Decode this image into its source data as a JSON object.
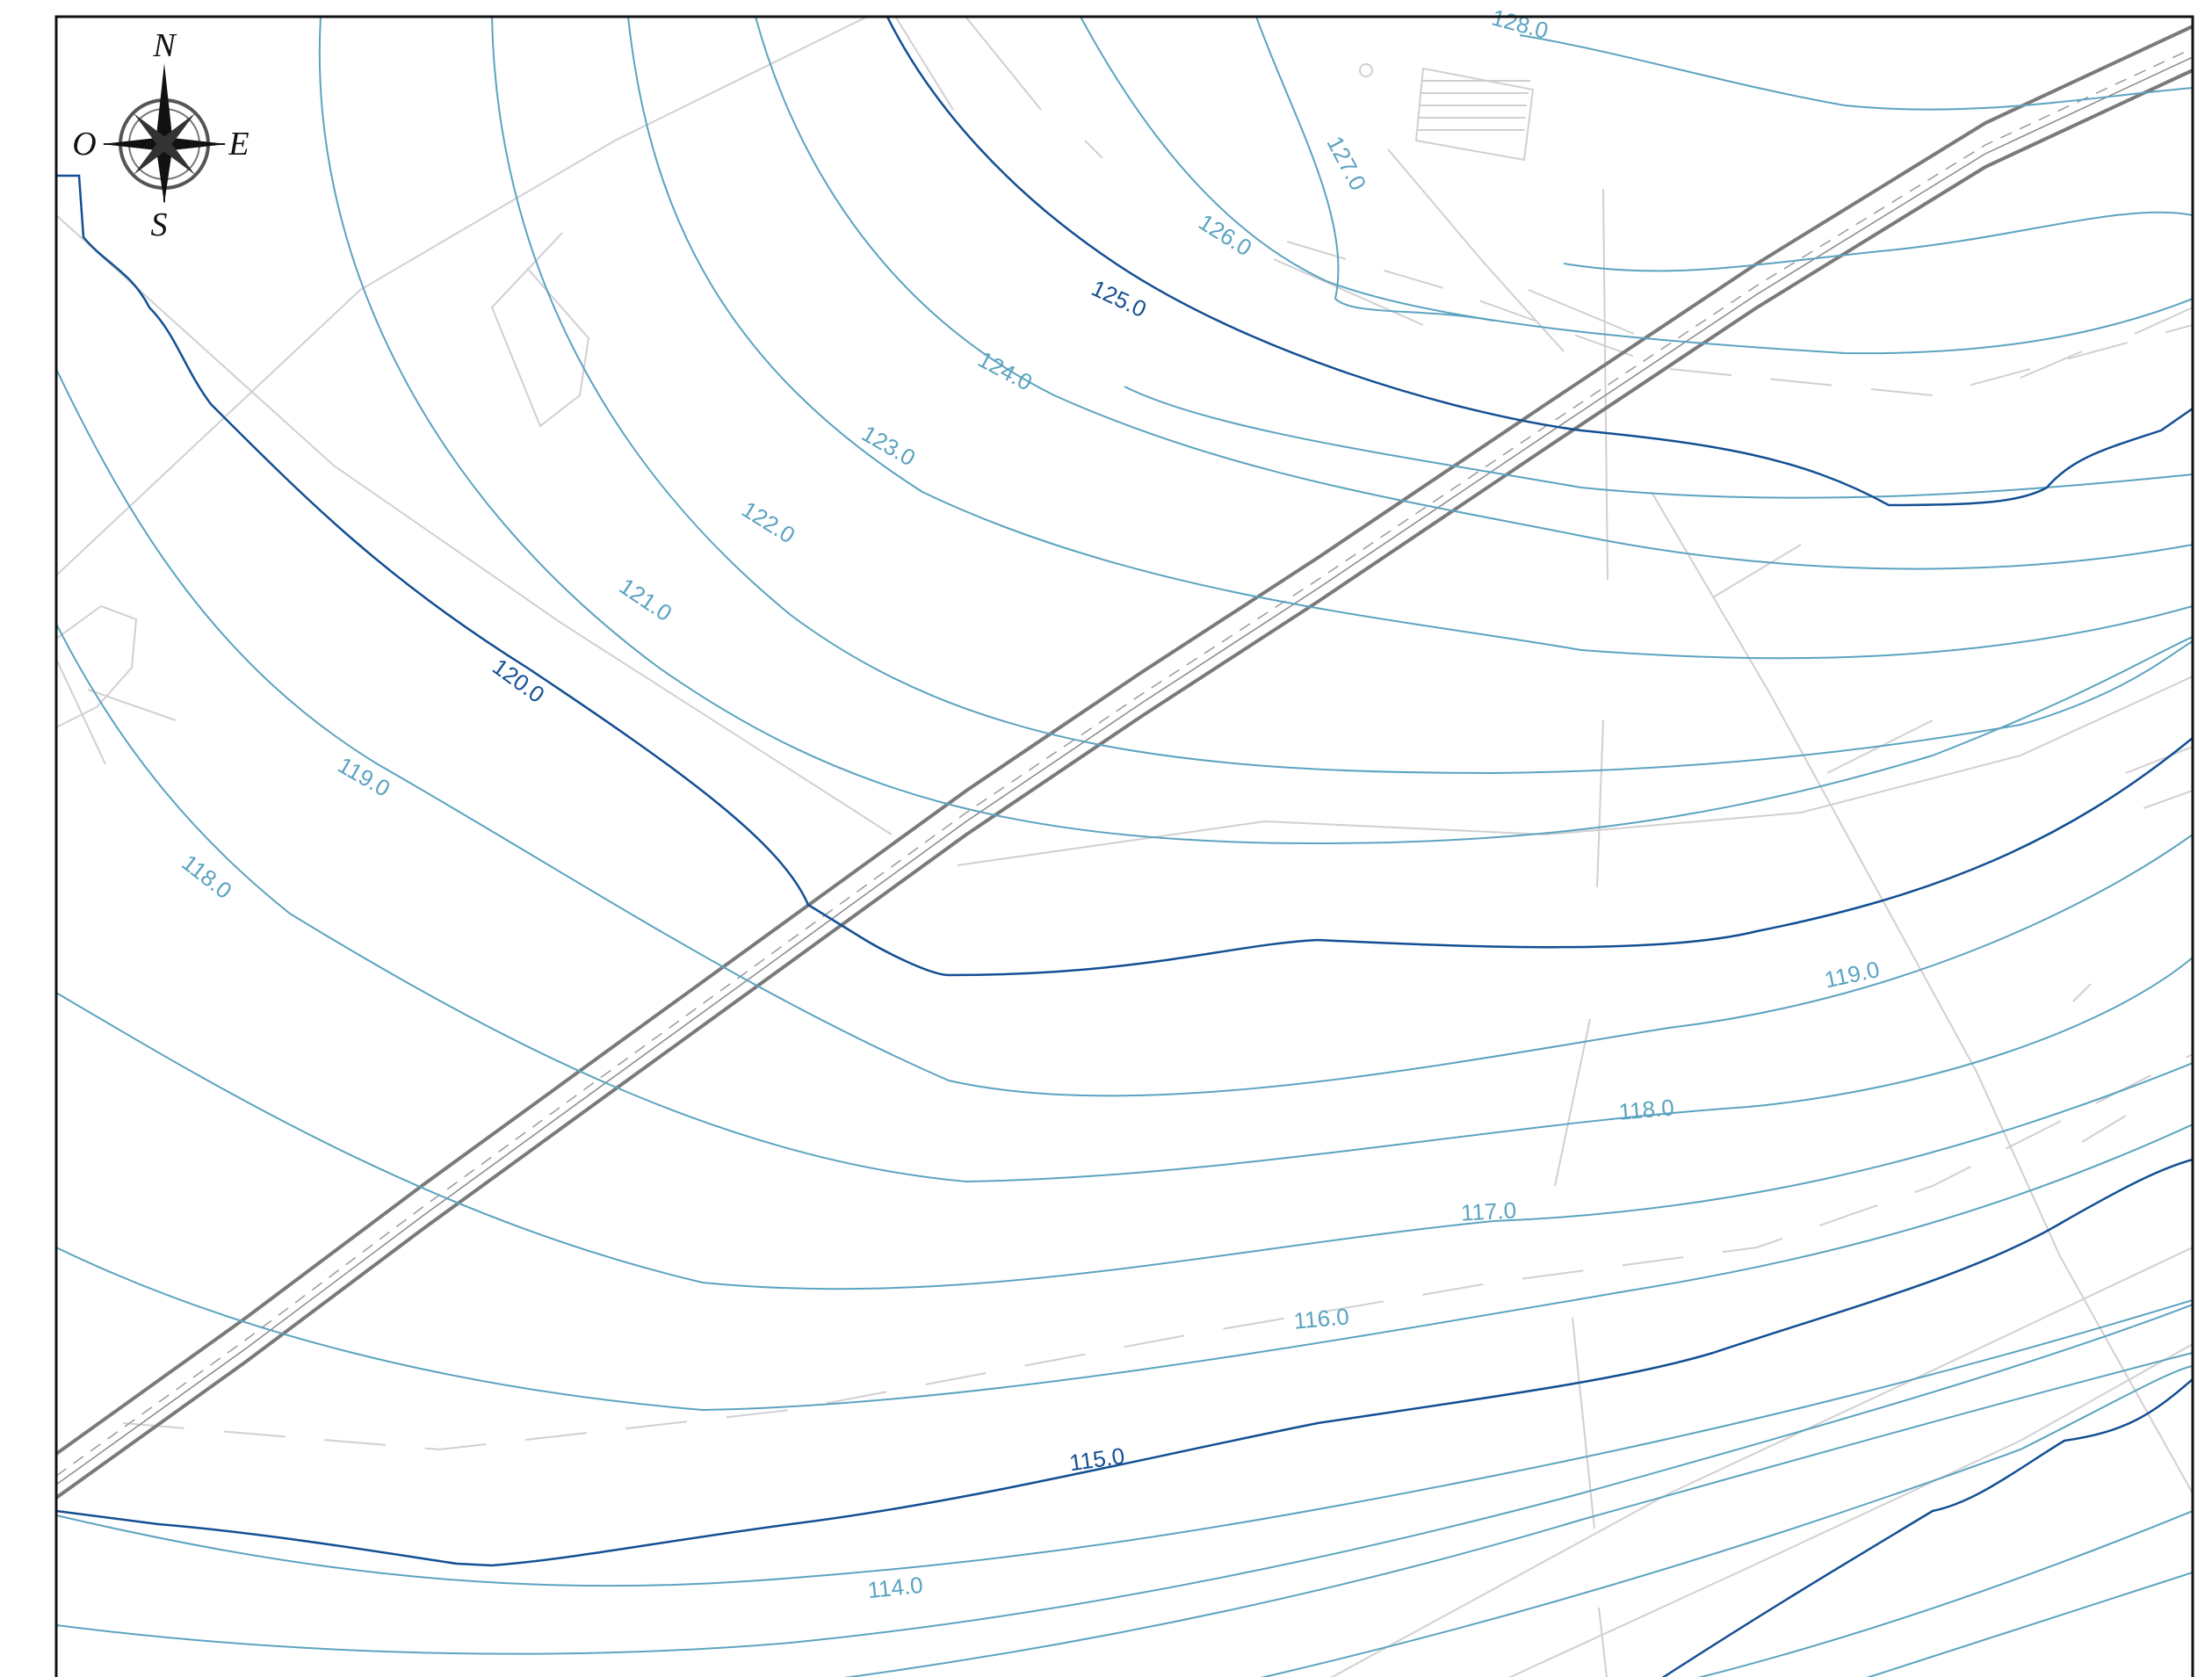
{
  "map": {
    "colors": {
      "minor_contour": "#5ba3c0",
      "major_contour": "#134f93",
      "road_line": "#7a7a7a",
      "background_features": "#cfcfcf",
      "frame": "#111111"
    },
    "compass": {
      "north": "N",
      "south": "S",
      "east": "E",
      "west": "O"
    },
    "contour_labels": {
      "c128": "128.0",
      "c127": "127.0",
      "c126": "126.0",
      "c125": "125.0",
      "c124": "124.0",
      "c123": "123.0",
      "c122": "122.0",
      "c121": "121.0",
      "c120": "120.0",
      "c119_west": "119.0",
      "c118_west": "118.0",
      "c119_east": "119.0",
      "c118_east": "118.0",
      "c117": "117.0",
      "c116": "116.0",
      "c115": "115.0",
      "c114": "114.0"
    }
  }
}
